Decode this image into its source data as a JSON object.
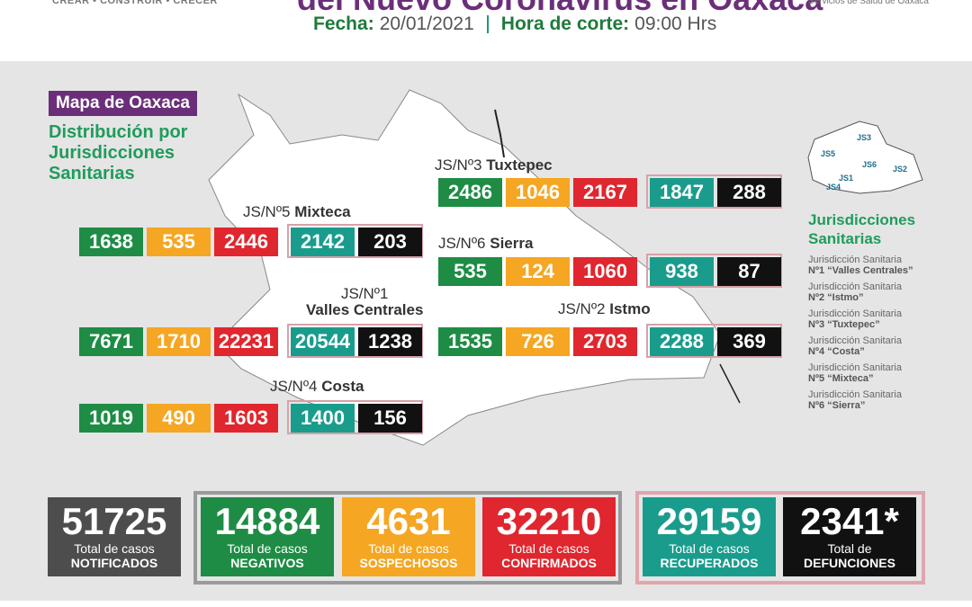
{
  "header": {
    "slogan": "CREAR • CONSTRUIR • CRECER",
    "title": "del Nuevo Coronavirus en Oaxaca",
    "agency": "Servicios de Salud de Oaxaca",
    "date_label": "Fecha:",
    "date": "20/01/2021",
    "time_label": "Hora de corte:",
    "time": "09:00 Hrs"
  },
  "map": {
    "badge": "Mapa de Oaxaca",
    "subtitle": "Distribución por Jurisdicciones Sanitarias",
    "jurisdictions": [
      {
        "code": "JS/Nº3",
        "name": "Tuxtepec",
        "values": [
          "2486",
          "1046",
          "2167",
          "1847",
          "288"
        ]
      },
      {
        "code": "JS/Nº5",
        "name": "Mixteca",
        "values": [
          "1638",
          "535",
          "2446",
          "2142",
          "203"
        ]
      },
      {
        "code": "JS/Nº6",
        "name": "Sierra",
        "values": [
          "535",
          "124",
          "1060",
          "938",
          "87"
        ]
      },
      {
        "code": "JS/Nº1",
        "name": "Valles Centrales",
        "values": [
          "7671",
          "1710",
          "22231",
          "20544",
          "1238"
        ]
      },
      {
        "code": "JS/Nº2",
        "name": "Istmo",
        "values": [
          "1535",
          "726",
          "2703",
          "2288",
          "369"
        ]
      },
      {
        "code": "JS/Nº4",
        "name": "Costa",
        "values": [
          "1019",
          "490",
          "1603",
          "1400",
          "156"
        ]
      }
    ]
  },
  "legend": {
    "mini_map_labels": [
      "JS1",
      "JS2",
      "JS3",
      "JS4",
      "JS5",
      "JS6"
    ],
    "title": "Jurisdicciones Sanitarias",
    "items": [
      {
        "line1": "Jurisdicción Sanitaria",
        "line2": "Nº1 “Valles Centrales”"
      },
      {
        "line1": "Jurisdicción Sanitaria",
        "line2": "Nº2 “Istmo”"
      },
      {
        "line1": "Jurisdicción Sanitaria",
        "line2": "Nº3 “Tuxtepec”"
      },
      {
        "line1": "Jurisdicción Sanitaria",
        "line2": "Nº4 “Costa”"
      },
      {
        "line1": "Jurisdicción Sanitaria",
        "line2": "Nº5 “Mixteca”"
      },
      {
        "line1": "Jurisdicción Sanitaria",
        "line2": "Nº6 “Sierra”"
      }
    ]
  },
  "totals": [
    {
      "value": "51725",
      "label": "Total de casos",
      "category": "NOTIFICADOS"
    },
    {
      "value": "14884",
      "label": "Total de casos",
      "category": "NEGATIVOS"
    },
    {
      "value": "4631",
      "label": "Total de casos",
      "category": "SOSPECHOSOS"
    },
    {
      "value": "32210",
      "label": "Total de casos",
      "category": "CONFIRMADOS"
    },
    {
      "value": "29159",
      "label": "Total de casos",
      "category": "RECUPERADOS"
    },
    {
      "value": "2341*",
      "label": "Total de",
      "category": "DEFUNCIONES"
    }
  ]
}
